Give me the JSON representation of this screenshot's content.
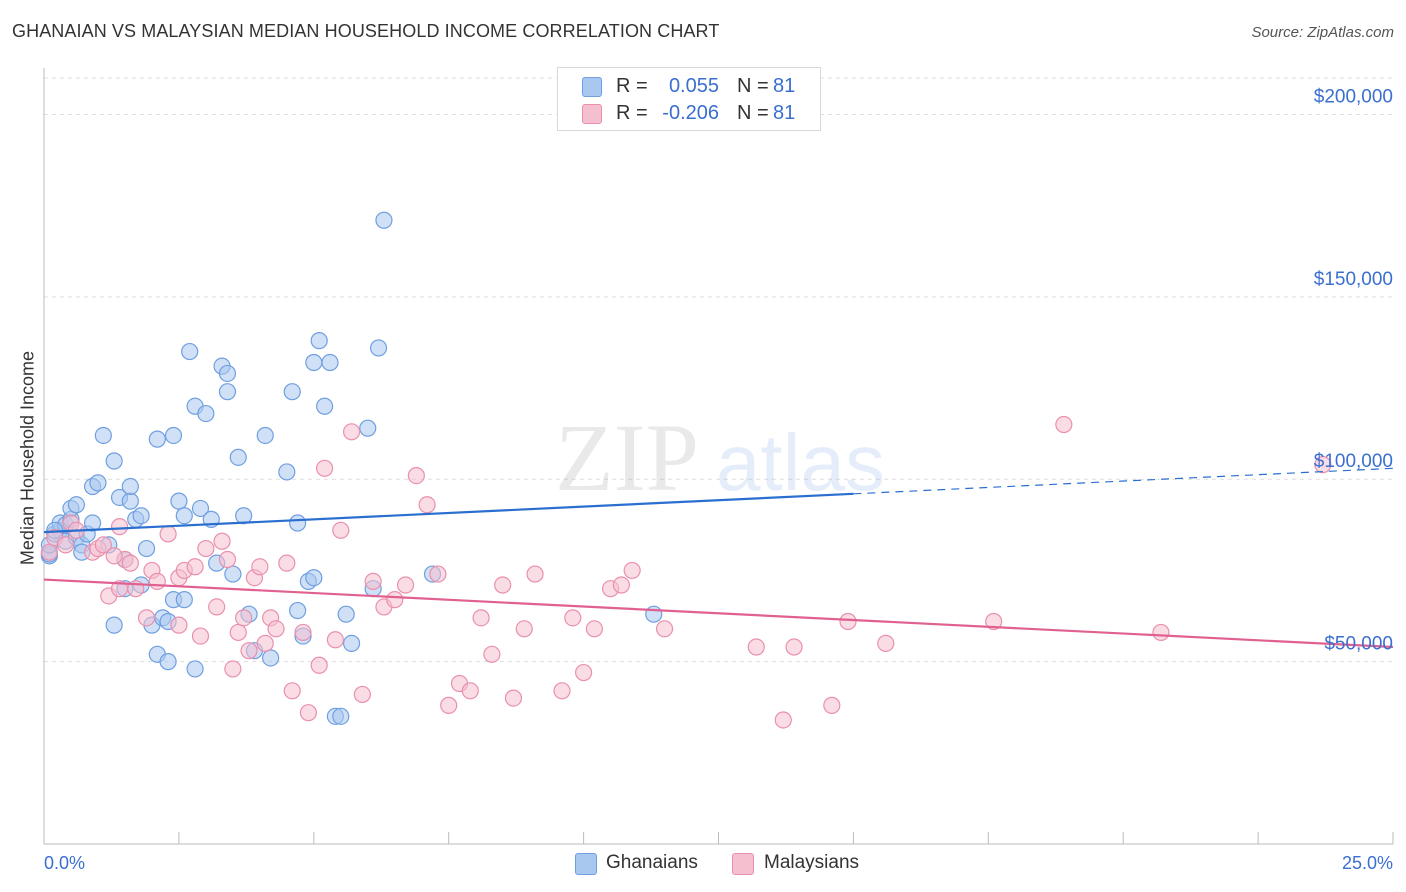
{
  "title": "GHANAIAN VS MALAYSIAN MEDIAN HOUSEHOLD INCOME CORRELATION CHART",
  "source": "Source: ZipAtlas.com",
  "watermark": {
    "zip": "ZIP",
    "atlas": "atlas"
  },
  "colors": {
    "blue_fill": "#a9c8f0",
    "blue_stroke": "#6f9fe0",
    "blue_line": "#2a6fd0",
    "pink_fill": "#f6bfd0",
    "pink_stroke": "#e990ad",
    "pink_line": "#e06090",
    "tick_text": "#3a6fd0",
    "grid": "#dddddd"
  },
  "legend_top": [
    {
      "r_label": "R =",
      "r_value": "0.055",
      "n_label": "N =",
      "n_value": "81",
      "color": "#a9c8f0"
    },
    {
      "r_label": "R =",
      "r_value": "-0.206",
      "n_label": "N =",
      "n_value": "81",
      "color": "#f6bfd0"
    }
  ],
  "legend_bottom": [
    {
      "label": "Ghanaians",
      "color": "#a9c8f0"
    },
    {
      "label": "Malaysians",
      "color": "#f6bfd0"
    }
  ],
  "chart_data": {
    "type": "scatter",
    "ylabel": "Median Household Income",
    "xlim": [
      0,
      25
    ],
    "ylim": [
      0,
      210000
    ],
    "x_tick_labels": [
      {
        "x": 0,
        "label": "0.0%"
      },
      {
        "x": 25,
        "label": "25.0%"
      }
    ],
    "y_tick_labels": [
      {
        "y": 50000,
        "label": "$50,000"
      },
      {
        "y": 100000,
        "label": "$100,000"
      },
      {
        "y": 150000,
        "label": "$150,000"
      },
      {
        "y": 200000,
        "label": "$200,000"
      }
    ],
    "grid": true,
    "series": [
      {
        "name": "Ghanaians",
        "color": "#a9c8f0",
        "trend": {
          "x": [
            0,
            15
          ],
          "y": [
            85500,
            96000
          ],
          "dashed_to_x": 25,
          "dashed_to_y": 103000
        },
        "points": [
          [
            0.1,
            79000
          ],
          [
            0.1,
            79500
          ],
          [
            0.1,
            82000
          ],
          [
            0.2,
            85000
          ],
          [
            0.3,
            86000
          ],
          [
            0.3,
            88000
          ],
          [
            0.4,
            83000
          ],
          [
            0.4,
            87500
          ],
          [
            0.5,
            89000
          ],
          [
            0.5,
            92000
          ],
          [
            0.6,
            93000
          ],
          [
            0.6,
            84000
          ],
          [
            0.7,
            82000
          ],
          [
            0.7,
            80000
          ],
          [
            0.8,
            85000
          ],
          [
            0.9,
            88000
          ],
          [
            0.9,
            98000
          ],
          [
            1.0,
            99000
          ],
          [
            1.1,
            112000
          ],
          [
            1.2,
            82000
          ],
          [
            1.3,
            60000
          ],
          [
            1.3,
            105000
          ],
          [
            1.4,
            95000
          ],
          [
            1.5,
            70000
          ],
          [
            1.5,
            78000
          ],
          [
            1.6,
            94000
          ],
          [
            1.6,
            98000
          ],
          [
            1.7,
            89000
          ],
          [
            1.8,
            71000
          ],
          [
            1.8,
            90000
          ],
          [
            1.9,
            81000
          ],
          [
            2.0,
            60000
          ],
          [
            2.1,
            111000
          ],
          [
            2.1,
            52000
          ],
          [
            2.2,
            62000
          ],
          [
            2.3,
            50000
          ],
          [
            2.3,
            61000
          ],
          [
            2.4,
            67000
          ],
          [
            2.4,
            112000
          ],
          [
            2.5,
            94000
          ],
          [
            2.6,
            90000
          ],
          [
            2.6,
            67000
          ],
          [
            2.7,
            135000
          ],
          [
            2.8,
            120000
          ],
          [
            2.8,
            48000
          ],
          [
            2.9,
            92000
          ],
          [
            3.0,
            118000
          ],
          [
            3.1,
            89000
          ],
          [
            3.2,
            77000
          ],
          [
            3.3,
            131000
          ],
          [
            3.4,
            124000
          ],
          [
            3.4,
            129000
          ],
          [
            3.5,
            74000
          ],
          [
            3.6,
            106000
          ],
          [
            3.7,
            90000
          ],
          [
            3.8,
            63000
          ],
          [
            3.9,
            53000
          ],
          [
            4.1,
            112000
          ],
          [
            4.2,
            51000
          ],
          [
            4.5,
            102000
          ],
          [
            4.6,
            124000
          ],
          [
            4.7,
            88000
          ],
          [
            4.7,
            64000
          ],
          [
            4.8,
            57000
          ],
          [
            4.9,
            72000
          ],
          [
            5.0,
            73000
          ],
          [
            5.0,
            132000
          ],
          [
            5.1,
            138000
          ],
          [
            5.2,
            120000
          ],
          [
            5.3,
            132000
          ],
          [
            5.4,
            35000
          ],
          [
            5.5,
            35000
          ],
          [
            5.6,
            63000
          ],
          [
            5.7,
            55000
          ],
          [
            6.0,
            114000
          ],
          [
            6.1,
            70000
          ],
          [
            6.2,
            136000
          ],
          [
            6.3,
            171000
          ],
          [
            7.2,
            74000
          ],
          [
            11.3,
            63000
          ],
          [
            0.2,
            86000
          ]
        ]
      },
      {
        "name": "Malaysians",
        "color": "#f6bfd0",
        "trend": {
          "x": [
            0,
            25
          ],
          "y": [
            72500,
            54000
          ]
        },
        "points": [
          [
            0.1,
            80000
          ],
          [
            0.2,
            84000
          ],
          [
            0.4,
            82000
          ],
          [
            0.5,
            88000
          ],
          [
            0.6,
            86000
          ],
          [
            0.9,
            80000
          ],
          [
            1.0,
            81000
          ],
          [
            1.1,
            82000
          ],
          [
            1.2,
            68000
          ],
          [
            1.4,
            70000
          ],
          [
            1.4,
            87000
          ],
          [
            1.5,
            78000
          ],
          [
            1.6,
            77000
          ],
          [
            1.7,
            70000
          ],
          [
            1.9,
            62000
          ],
          [
            2.0,
            75000
          ],
          [
            2.1,
            72000
          ],
          [
            2.3,
            85000
          ],
          [
            2.5,
            73000
          ],
          [
            2.5,
            60000
          ],
          [
            2.6,
            75000
          ],
          [
            2.8,
            76000
          ],
          [
            2.9,
            57000
          ],
          [
            3.0,
            81000
          ],
          [
            3.2,
            65000
          ],
          [
            3.3,
            83000
          ],
          [
            3.4,
            78000
          ],
          [
            3.5,
            48000
          ],
          [
            3.6,
            58000
          ],
          [
            3.7,
            62000
          ],
          [
            3.8,
            53000
          ],
          [
            3.9,
            73000
          ],
          [
            4.0,
            76000
          ],
          [
            4.1,
            55000
          ],
          [
            4.2,
            62000
          ],
          [
            4.3,
            59000
          ],
          [
            4.5,
            77000
          ],
          [
            4.6,
            42000
          ],
          [
            4.8,
            58000
          ],
          [
            4.9,
            36000
          ],
          [
            5.1,
            49000
          ],
          [
            5.2,
            103000
          ],
          [
            5.4,
            56000
          ],
          [
            5.5,
            86000
          ],
          [
            5.7,
            113000
          ],
          [
            5.9,
            41000
          ],
          [
            6.1,
            72000
          ],
          [
            6.3,
            65000
          ],
          [
            6.5,
            67000
          ],
          [
            6.7,
            71000
          ],
          [
            6.9,
            101000
          ],
          [
            7.1,
            93000
          ],
          [
            7.3,
            74000
          ],
          [
            7.5,
            38000
          ],
          [
            7.7,
            44000
          ],
          [
            7.9,
            42000
          ],
          [
            8.1,
            62000
          ],
          [
            8.3,
            52000
          ],
          [
            8.5,
            71000
          ],
          [
            8.7,
            40000
          ],
          [
            8.9,
            59000
          ],
          [
            9.1,
            74000
          ],
          [
            9.6,
            42000
          ],
          [
            9.8,
            62000
          ],
          [
            10.0,
            47000
          ],
          [
            10.2,
            59000
          ],
          [
            10.5,
            70000
          ],
          [
            10.7,
            71000
          ],
          [
            10.9,
            75000
          ],
          [
            11.5,
            59000
          ],
          [
            13.2,
            54000
          ],
          [
            13.7,
            34000
          ],
          [
            13.9,
            54000
          ],
          [
            14.6,
            38000
          ],
          [
            14.9,
            61000
          ],
          [
            15.6,
            55000
          ],
          [
            17.6,
            61000
          ],
          [
            18.9,
            115000
          ],
          [
            20.7,
            58000
          ],
          [
            23.7,
            104000
          ],
          [
            1.3,
            79000
          ]
        ]
      }
    ]
  }
}
